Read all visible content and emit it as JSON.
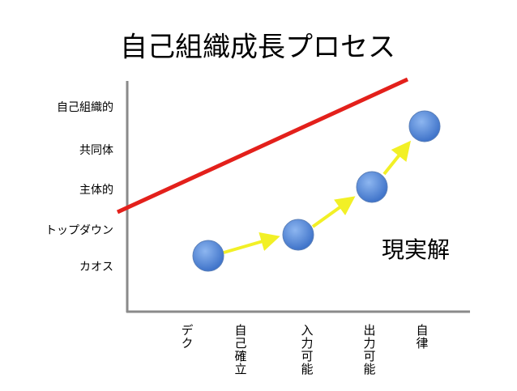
{
  "title": "自己組織成長プロセス",
  "y_labels": [
    "自己組織的",
    "共同体",
    "主体的",
    "トップダウン",
    "カオス"
  ],
  "x_labels": [
    "デク",
    "自己確立",
    "入力可能",
    "出力可能",
    "自律"
  ],
  "annotation": "現実解"
}
